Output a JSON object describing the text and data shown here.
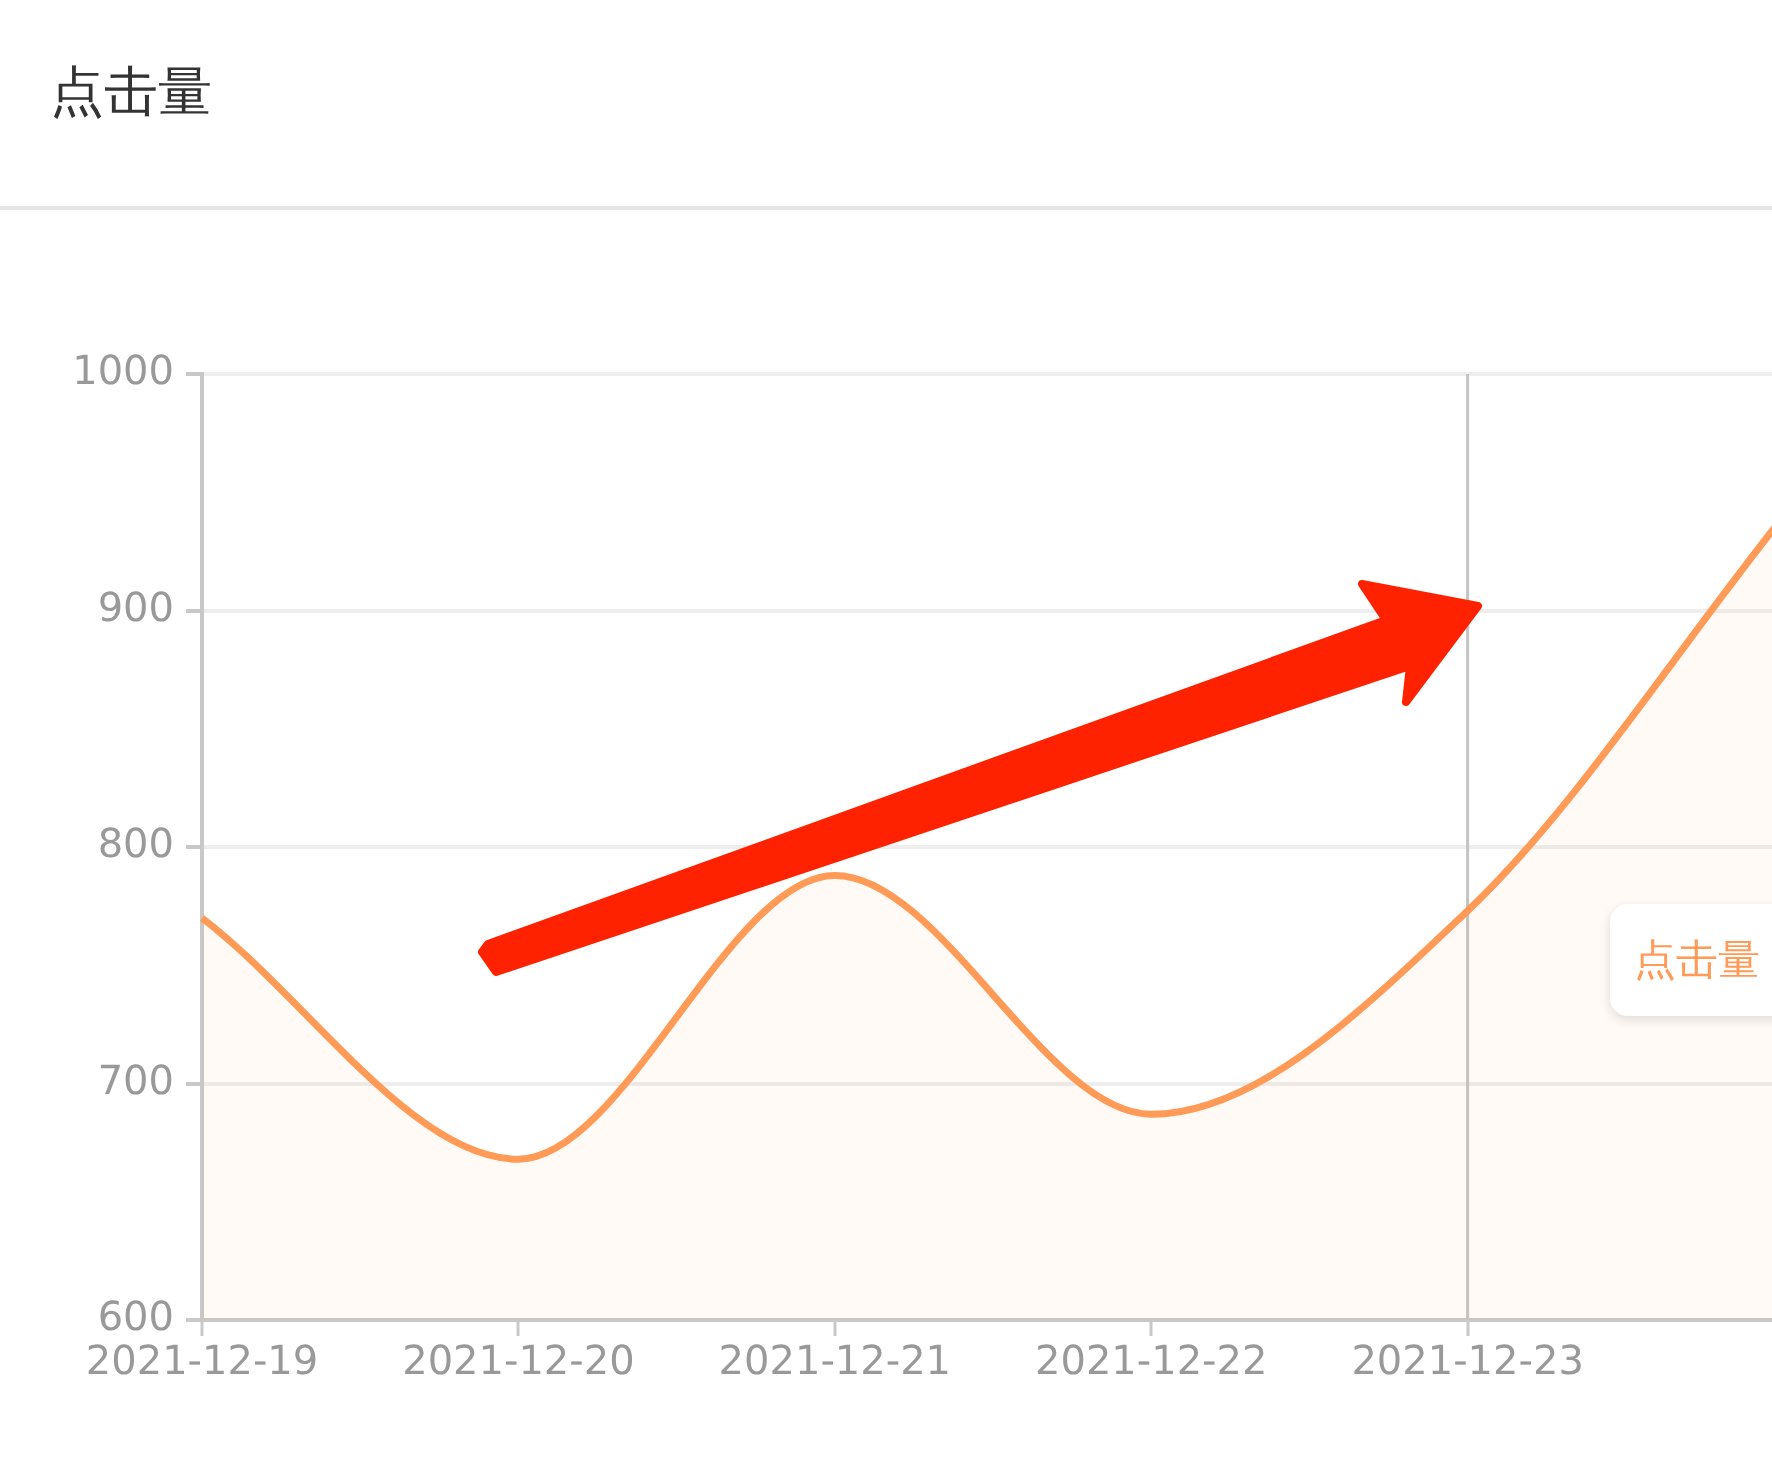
{
  "chart_data": {
    "type": "area",
    "title": "点击量",
    "categories": [
      "2021-12-19",
      "2021-12-20",
      "2021-12-21",
      "2021-12-22",
      "2021-12-23",
      null
    ],
    "series": [
      {
        "color": "#ff9a57",
        "values": [
          770,
          668,
          788,
          687,
          773,
          940
        ]
      }
    ],
    "ylim": [
      600,
      1000
    ],
    "yticks": [
      600,
      700,
      800,
      900,
      1000
    ],
    "grid": "y",
    "legend": false,
    "marker": "none",
    "line_style": "solid",
    "ref_lines": [
      {
        "axis": "x",
        "value": "2021-12-23",
        "color": "#c4c4c4"
      }
    ],
    "annotations": [
      "点击量"
    ]
  }
}
